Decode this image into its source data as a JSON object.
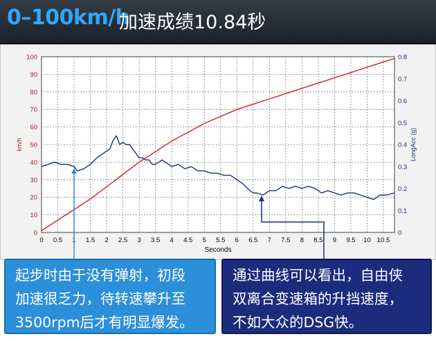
{
  "header": {
    "title_main": "0–100km/h",
    "title_sub": "加速成绩10.84秒"
  },
  "captions": {
    "left": [
      "起步时由于没有弹射，初段",
      "加速很乏力，待转速攀升至",
      "3500rpm后才有明显爆发。"
    ],
    "right": [
      "通过曲线可以看出，自由侠",
      "双离合变速箱的升挡速度，",
      "不如大众的DSG快。"
    ]
  },
  "colors": {
    "speed": "#cc1f1f",
    "accel": "#1e3278",
    "left_axis": "#b02020",
    "right_axis": "#1e3278",
    "grid": "#808080",
    "callout_left": "#2c8fd9",
    "callout_right": "#1c2c7c"
  },
  "chart_data": {
    "type": "line",
    "xlabel": "Seconds",
    "ylabel_left": "km/h",
    "ylabel_right": "LongAcc (g)",
    "xlim": [
      0,
      10.84
    ],
    "ylim_left": [
      0,
      100
    ],
    "ylim_right": [
      0,
      0.8
    ],
    "grid": true,
    "x_ticks": [
      "0",
      "0.5",
      "1",
      "1.5",
      "2",
      "2.5",
      "3",
      "3.5",
      "4",
      "4.5",
      "5",
      "5.5",
      "6",
      "6.5",
      "7",
      "7.5",
      "8",
      "8.5",
      "9",
      "9.5",
      "10",
      "10.5"
    ],
    "y_left_ticks": [
      "0",
      "10",
      "20",
      "30",
      "40",
      "50",
      "60",
      "70",
      "80",
      "90",
      "100"
    ],
    "y_right_ticks": [
      "0",
      "0.1",
      "0.2",
      "0.3",
      "0.4",
      "0.5",
      "0.6",
      "0.7",
      "0.8"
    ],
    "series": [
      {
        "name": "km/h",
        "axis": "left",
        "x": [
          0,
          0.5,
          1,
          1.5,
          2,
          2.5,
          3,
          3.5,
          4,
          4.5,
          5,
          5.5,
          6,
          6.5,
          7,
          7.5,
          8,
          8.5,
          9,
          9.5,
          10,
          10.5,
          10.84
        ],
        "y": [
          1,
          7,
          13,
          19,
          26,
          33,
          40,
          46,
          52,
          57,
          62,
          66,
          70,
          73,
          76,
          79,
          82,
          85,
          88,
          91,
          94,
          97,
          99
        ]
      },
      {
        "name": "LongAcc (g)",
        "axis": "right",
        "x": [
          0,
          0.2,
          0.4,
          0.6,
          0.8,
          1.0,
          1.1,
          1.3,
          1.5,
          1.7,
          1.9,
          2.0,
          2.1,
          2.2,
          2.3,
          2.4,
          2.5,
          2.6,
          2.7,
          2.8,
          2.9,
          3.0,
          3.1,
          3.2,
          3.3,
          3.4,
          3.5,
          3.6,
          3.7,
          3.8,
          3.9,
          4.0,
          4.2,
          4.4,
          4.6,
          4.8,
          5.0,
          5.2,
          5.4,
          5.6,
          5.8,
          6.0,
          6.2,
          6.4,
          6.5,
          6.6,
          6.8,
          7.0,
          7.2,
          7.4,
          7.6,
          7.8,
          8.0,
          8.2,
          8.4,
          8.6,
          8.8,
          9.0,
          9.2,
          9.4,
          9.6,
          9.8,
          10.0,
          10.2,
          10.4,
          10.6,
          10.84
        ],
        "y": [
          0.3,
          0.31,
          0.32,
          0.31,
          0.31,
          0.3,
          0.28,
          0.29,
          0.31,
          0.34,
          0.36,
          0.37,
          0.38,
          0.42,
          0.44,
          0.4,
          0.41,
          0.4,
          0.4,
          0.38,
          0.36,
          0.34,
          0.34,
          0.33,
          0.33,
          0.31,
          0.31,
          0.32,
          0.33,
          0.32,
          0.31,
          0.3,
          0.31,
          0.29,
          0.3,
          0.28,
          0.28,
          0.27,
          0.27,
          0.26,
          0.26,
          0.24,
          0.22,
          0.19,
          0.18,
          0.18,
          0.17,
          0.19,
          0.19,
          0.21,
          0.2,
          0.21,
          0.2,
          0.21,
          0.2,
          0.18,
          0.19,
          0.18,
          0.17,
          0.18,
          0.18,
          0.17,
          0.16,
          0.15,
          0.17,
          0.17,
          0.18
        ]
      }
    ]
  }
}
